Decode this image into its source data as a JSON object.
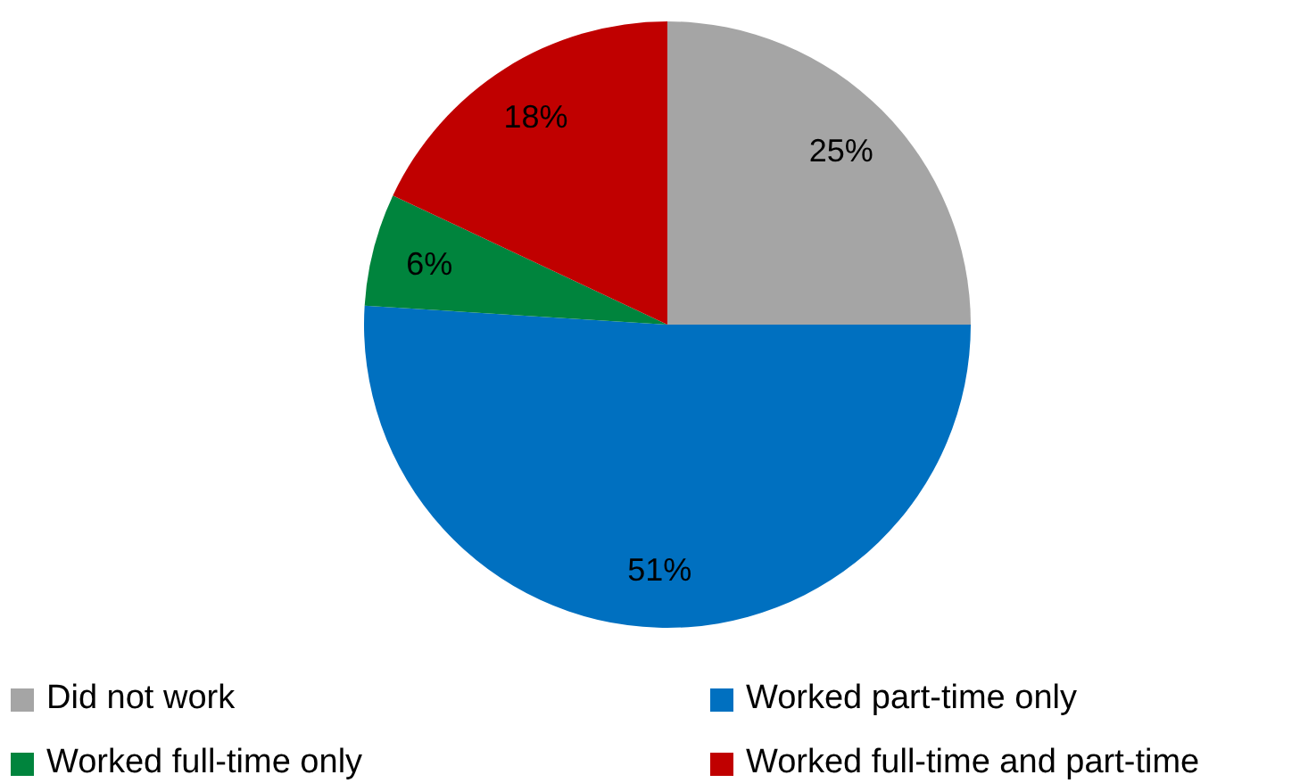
{
  "chart_data": {
    "type": "pie",
    "categories": [
      "Did not work",
      "Worked part-time only",
      "Worked full-time only",
      "Worked full-time and part-time"
    ],
    "values": [
      25,
      51,
      6,
      18
    ],
    "value_labels": [
      "25%",
      "51%",
      "6%",
      "18%"
    ],
    "colors": [
      "#a5a5a5",
      "#0070c0",
      "#00843d",
      "#c00000"
    ],
    "legend": "bottom"
  }
}
